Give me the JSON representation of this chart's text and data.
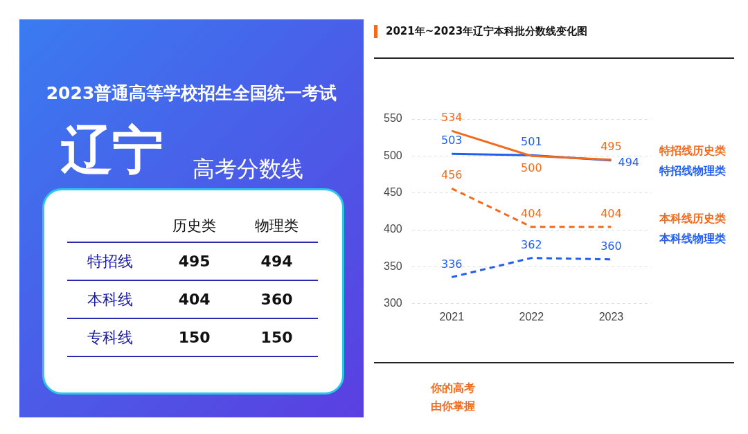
{
  "chart_data": [
    {
      "type": "other",
      "title": "2023普通高等学校招生全国统一考试",
      "subtitle": "辽宁",
      "annotations": [
        "高考分数线"
      ],
      "categories": [
        "历史类",
        "物理类"
      ],
      "y_categories": [
        "特招线",
        "本科线",
        "专科线"
      ],
      "cell_labels": [
        [
          "495",
          "494"
        ],
        [
          "404",
          "360"
        ],
        [
          "150",
          "150"
        ]
      ]
    },
    {
      "type": "line",
      "title": "2021年~2023年辽宁本科批分数线变化图",
      "categories": [
        "2021",
        "2022",
        "2023"
      ],
      "series": [
        {
          "name": "特招线历史类",
          "color": "#f26a1b",
          "values": [
            534,
            500,
            495
          ],
          "line_style": "solid"
        },
        {
          "name": "特招线物理类",
          "color": "#1f5ef0",
          "values": [
            503,
            501,
            494
          ],
          "line_style": "solid"
        },
        {
          "name": "本科线历史类",
          "color": "#f26a1b",
          "values": [
            456,
            404,
            404
          ],
          "line_style": "dashed"
        },
        {
          "name": "本科线物理类",
          "color": "#1f5ef0",
          "values": [
            336,
            362,
            360
          ],
          "line_style": "dashed"
        }
      ],
      "ylim": [
        300,
        550
      ],
      "yticks": [
        300,
        350,
        400,
        450,
        500,
        550
      ],
      "grid": "y",
      "legend": "right",
      "marker": "none",
      "data_labels": true,
      "annotations": [
        "你的高考",
        "由你掌握"
      ]
    }
  ]
}
